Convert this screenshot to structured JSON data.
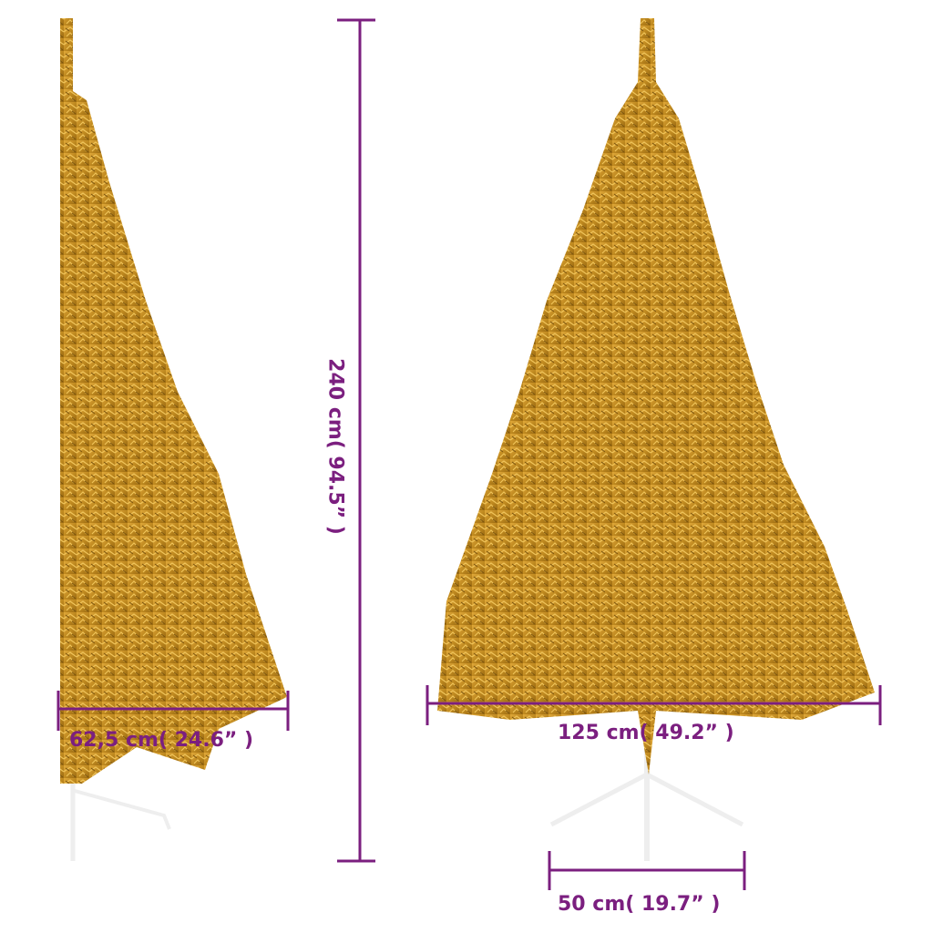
{
  "colors": {
    "dimension_line": "#7b1f7f",
    "tree_gold": "#c8901c",
    "stand": "#f2f2f2"
  },
  "dimensions": {
    "height": "240 cm( 94.5” )",
    "side_depth": "62,5 cm( 24.6”  )",
    "front_width": "125 cm( 49.2” )",
    "stand_width": "50 cm( 19.7” )"
  }
}
